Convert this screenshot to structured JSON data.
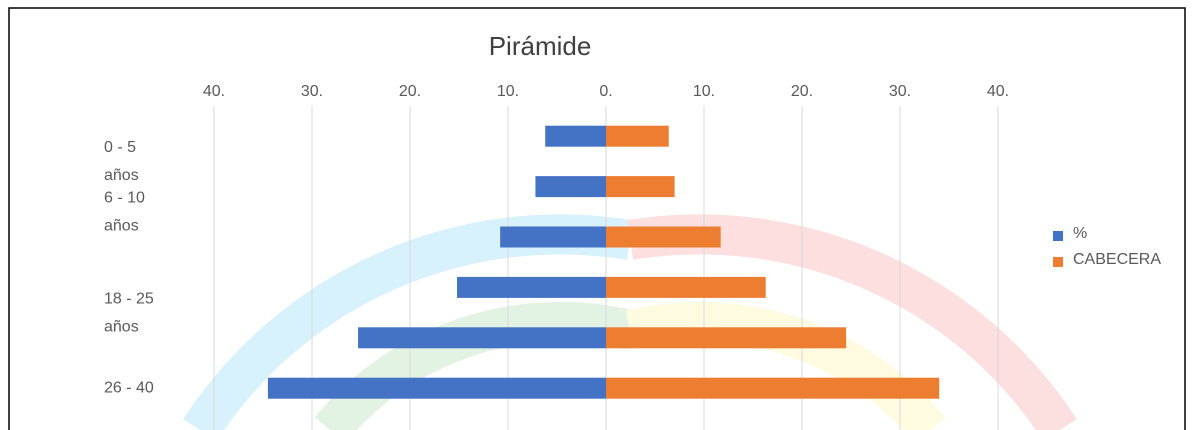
{
  "chart_data": {
    "type": "bar",
    "orientation": "horizontal",
    "title": "Pirámide",
    "categories": [
      "0 - 5 años",
      "6 - 10 años",
      null,
      "18 - 25 años",
      null,
      "26 - 40"
    ],
    "series": [
      {
        "name": "%",
        "color": "#4472c4",
        "values": [
          -6.2,
          -7.2,
          -10.8,
          -15.2,
          -25.3,
          -34.5
        ]
      },
      {
        "name": "CABECERA",
        "color": "#ed7d31",
        "values": [
          6.4,
          7.0,
          11.7,
          16.3,
          24.5,
          34.0
        ]
      }
    ],
    "xlim": [
      -40,
      40
    ],
    "xticks": [
      {
        "value": -40,
        "label": "40."
      },
      {
        "value": -30,
        "label": "30."
      },
      {
        "value": -20,
        "label": "20."
      },
      {
        "value": -10,
        "label": "10."
      },
      {
        "value": 0,
        "label": "0."
      },
      {
        "value": 10,
        "label": "10."
      },
      {
        "value": 20,
        "label": "20."
      },
      {
        "value": 30,
        "label": "30."
      },
      {
        "value": 40,
        "label": "40."
      }
    ],
    "grid": true,
    "legend": "right"
  }
}
